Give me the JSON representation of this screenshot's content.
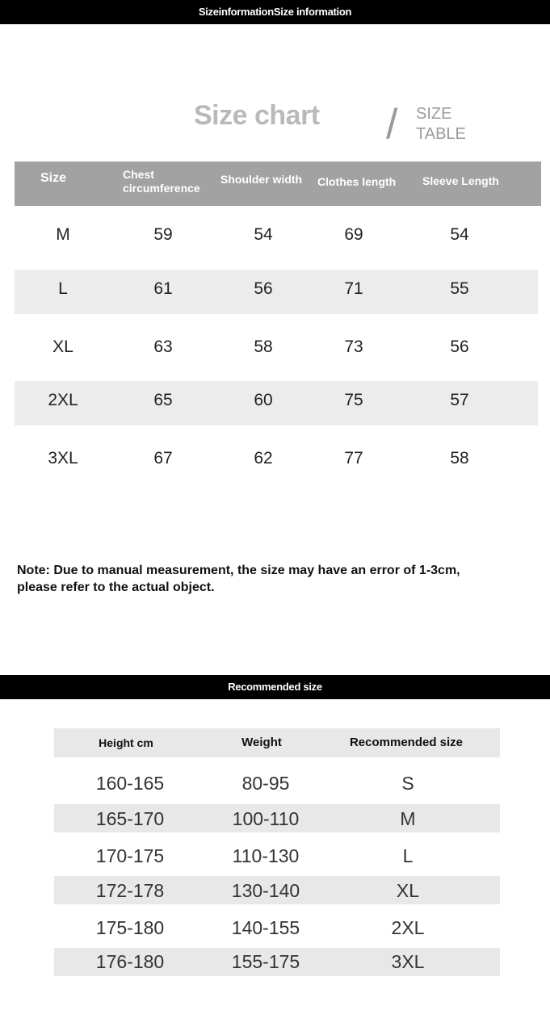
{
  "header_bar": "SizeinformationSize information",
  "size_chart": {
    "title": "Size chart",
    "subtitle_line1": "SIZE",
    "subtitle_line2": "TABLE",
    "columns": [
      "Size",
      "Chest circumference",
      "Shoulder width",
      "Clothes length",
      "Sleeve Length"
    ],
    "rows": [
      [
        "M",
        "59",
        "54",
        "69",
        "54"
      ],
      [
        "L",
        "61",
        "56",
        "71",
        "55"
      ],
      [
        "XL",
        "63",
        "58",
        "73",
        "56"
      ],
      [
        "2XL",
        "65",
        "60",
        "75",
        "57"
      ],
      [
        "3XL",
        "67",
        "62",
        "77",
        "58"
      ]
    ]
  },
  "note_line1": "Note: Due to manual measurement, the size may have an error of 1-3cm,",
  "note_line2": "please refer to the actual object.",
  "recommended_bar": "Recommended size",
  "recommended": {
    "columns": [
      "Height cm",
      "Weight",
      "Recommended size"
    ],
    "rows": [
      [
        "160-165",
        "80-95",
        "S"
      ],
      [
        "165-170",
        "100-110",
        "M"
      ],
      [
        "170-175",
        "110-130",
        "L"
      ],
      [
        "172-178",
        "130-140",
        "XL"
      ],
      [
        "175-180",
        "140-155",
        "2XL"
      ],
      [
        "176-180",
        "155-175",
        "3XL"
      ]
    ]
  }
}
